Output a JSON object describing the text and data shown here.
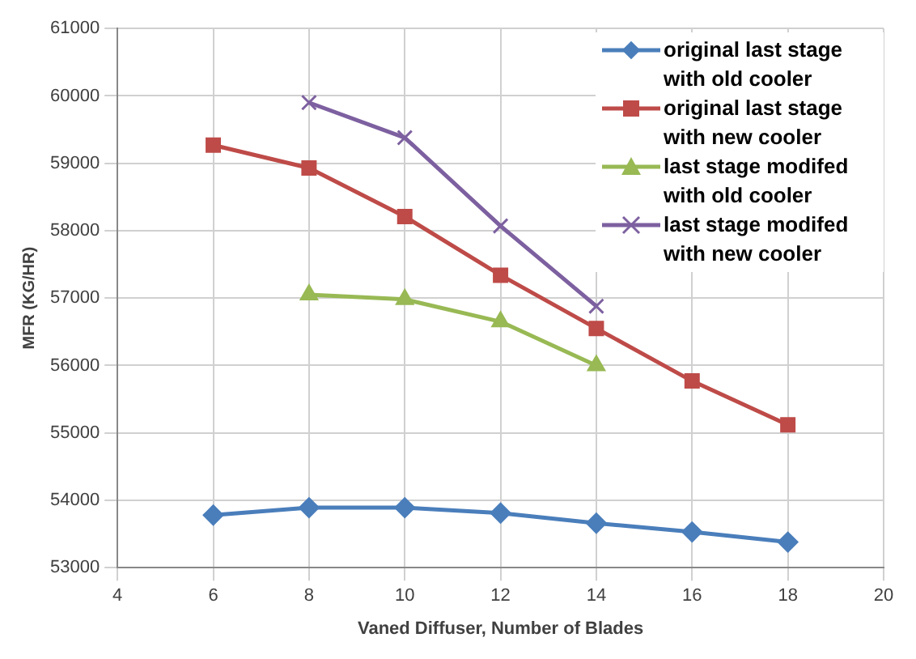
{
  "chart_data": {
    "type": "line",
    "xlabel": "Vaned Diffuser, Number of Blades",
    "ylabel": "MFR (KG/HR)",
    "xlim": [
      4,
      20
    ],
    "xticks": [
      4,
      6,
      8,
      10,
      12,
      14,
      16,
      18,
      20
    ],
    "ylim": [
      53000,
      61000
    ],
    "yticks": [
      53000,
      54000,
      55000,
      56000,
      57000,
      58000,
      59000,
      60000,
      61000
    ],
    "grid": true,
    "legend": "top right",
    "line_style": "solid",
    "series": [
      {
        "name": "original last stage with old cooler",
        "color": "#4a7ebb",
        "marker": "diamond",
        "x": [
          6,
          8,
          10,
          12,
          14,
          16,
          18
        ],
        "values": [
          53780,
          53890,
          53890,
          53810,
          53660,
          53530,
          53380
        ]
      },
      {
        "name": "original last stage with new cooler",
        "color": "#be4b48",
        "marker": "square",
        "x": [
          6,
          8,
          10,
          12,
          14,
          16,
          18
        ],
        "values": [
          59270,
          58930,
          58210,
          57340,
          56550,
          55770,
          55120
        ]
      },
      {
        "name": "last stage modifed with old cooler",
        "color": "#98b954",
        "marker": "triangle",
        "x": [
          8,
          10,
          12,
          14
        ],
        "values": [
          57050,
          56980,
          56650,
          56000
        ]
      },
      {
        "name": "last stage modifed with new cooler",
        "color": "#7d60a0",
        "marker": "cross",
        "x": [
          8,
          10,
          12,
          14
        ],
        "values": [
          59900,
          59380,
          58070,
          56880
        ]
      }
    ]
  }
}
